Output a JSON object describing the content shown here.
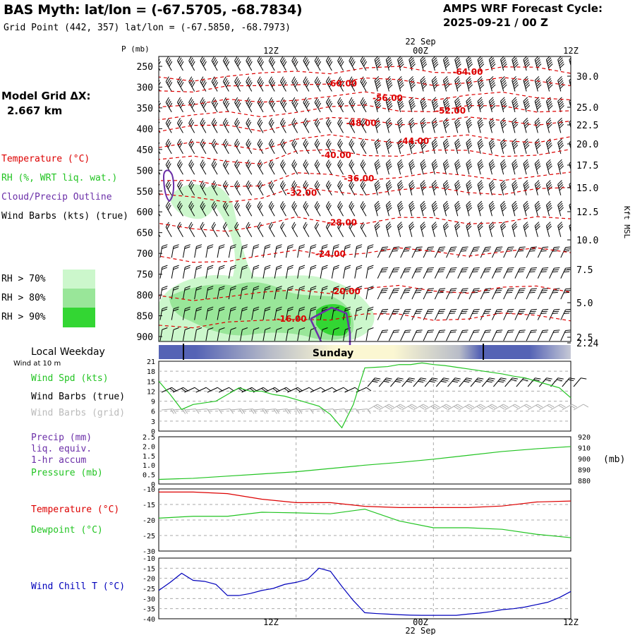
{
  "header": {
    "title": "BAS Myth:  lat/lon = (-67.5705, -68.7834)",
    "subtitle": "Grid Point (442, 357) lat/lon = (-67.5850, -68.7973)",
    "cycle_title": "AMPS WRF Forecast Cycle:",
    "cycle_date": "2025-09-21 / 00  Z",
    "grid_label": "Model Grid ΔX:",
    "grid_value": "2.667 km"
  },
  "legend": {
    "temperature": "Temperature (°C)",
    "rh": "RH (%, WRT liq. wat.)",
    "cloud": "Cloud/Precip Outline",
    "wind_barbs": "Wind Barbs (kts) (true)",
    "rh_levels": [
      {
        "label": "RH > 70%",
        "color": "#ccf7cc"
      },
      {
        "label": "RH > 80%",
        "color": "#99e699"
      },
      {
        "label": "RH > 90%",
        "color": "#33d633"
      }
    ]
  },
  "colors": {
    "temperature": "#dd0000",
    "rh": "#22c422",
    "cloud": "#6b2fa8",
    "wind_chill": "#0000bb",
    "barb": "#000000",
    "barb_grid": "#aaaaaa",
    "day_bar_night": "#5563b5",
    "day_bar_day": "#fbf7d2"
  },
  "time_axis": {
    "ticks": [
      "12Z",
      "00Z",
      "12Z"
    ],
    "date_label": "22 Sep"
  },
  "day_bar": {
    "title": "Local Weekday",
    "day": "Sunday"
  },
  "panels": {
    "wind": {
      "title": "Wind at 10 m",
      "label_speed": "Wind Spd (kts)",
      "label_true": "Wind Barbs (true)",
      "label_grid": "Wind Barbs (grid)"
    },
    "precip": {
      "label_precip": "Precip (mm)",
      "label_liq": "liq. equiv.",
      "label_accum": "1-hr accum",
      "label_pressure": "Pressure (mb)",
      "right_unit": "(mb)"
    },
    "temp": {
      "label_temperature": "Temperature (°C)",
      "label_dewpoint": "Dewpoint (°C)"
    },
    "chill": {
      "label": "Wind Chill T (°C)"
    }
  },
  "chart_data": [
    {
      "type": "heatmap",
      "name": "vertical cross-section",
      "ylabel_left": "P (mb)",
      "ylabel_right": "Kft MSL",
      "y_pressure_ticks": [
        250,
        300,
        350,
        400,
        450,
        500,
        550,
        600,
        650,
        700,
        750,
        800,
        850,
        900
      ],
      "y_height_ticks": [
        "30.0",
        "25.0",
        "22.5",
        "20.0",
        "17.5",
        "15.0",
        "12.5",
        "10.0",
        "7.5",
        "5.0",
        "2.5",
        "2.24"
      ],
      "x_ticks": [
        "12Z",
        "00Z",
        "12Z"
      ],
      "temperature_isotherm_labels": [
        {
          "label": "-64.00",
          "hour": 27,
          "p": 262
        },
        {
          "label": "-60.00",
          "hour": 16,
          "p": 290
        },
        {
          "label": "-56.00",
          "hour": 20,
          "p": 325
        },
        {
          "label": "-52.00",
          "hour": 25.5,
          "p": 355
        },
        {
          "label": "-48.00",
          "hour": 17.7,
          "p": 385
        },
        {
          "label": "-44.00",
          "hour": 22.3,
          "p": 428
        },
        {
          "label": "-40.00",
          "hour": 15.5,
          "p": 462
        },
        {
          "label": "-36.00",
          "hour": 17.5,
          "p": 518
        },
        {
          "label": "-32.00",
          "hour": 12.5,
          "p": 553
        },
        {
          "label": "-28.00",
          "hour": 16,
          "p": 624
        },
        {
          "label": "-24.00",
          "hour": 15,
          "p": 700
        },
        {
          "label": "-20.00",
          "hour": 16.3,
          "p": 790
        },
        {
          "label": "-16.00",
          "hour": 11.6,
          "p": 856
        }
      ]
    },
    {
      "type": "line",
      "name": "wind speed 10 m",
      "ylabel": "Wind Spd (kts)",
      "ylim": [
        0,
        21
      ],
      "yticks": [
        0,
        3,
        6,
        9,
        12,
        15,
        18,
        21
      ],
      "x": [
        0,
        1,
        2,
        3,
        4,
        5,
        6,
        7,
        8,
        9,
        10,
        11,
        12,
        13,
        14,
        15,
        16,
        17,
        18,
        19,
        20,
        21,
        22,
        23,
        24,
        25,
        26,
        27,
        28,
        29,
        30,
        31,
        32,
        33,
        34,
        35,
        36
      ],
      "series": [
        {
          "name": "Wind Spd (kts)",
          "values": [
            15,
            11,
            6.5,
            8,
            8.5,
            9,
            11,
            13,
            12,
            12,
            11,
            10.5,
            9.5,
            8.5,
            7.5,
            5,
            1,
            8,
            19,
            19.2,
            19.4,
            20,
            20,
            20.5,
            20,
            19.7,
            19.2,
            18.7,
            18.2,
            17.7,
            17.2,
            16.5,
            16,
            15,
            14,
            13,
            10
          ]
        }
      ]
    },
    {
      "type": "line",
      "name": "pressure",
      "ylabel_left": "Precip (mm)",
      "ylim_left": [
        0,
        2.5
      ],
      "yticks_left": [
        "0",
        "0.5",
        "1.0",
        "1.5",
        "2.0",
        "2.5"
      ],
      "ylabel_right": "(mb)",
      "ylim_right": [
        876.8,
        920
      ],
      "yticks_right": [
        880,
        890,
        900,
        910,
        920
      ],
      "x": [
        0,
        3,
        6,
        9,
        12,
        15,
        18,
        21,
        24,
        27,
        30,
        33,
        36
      ],
      "series": [
        {
          "name": "Pressure (mb)",
          "values": [
            881,
            882,
            884,
            886,
            888,
            891,
            894,
            896.5,
            899.5,
            903,
            906.5,
            909,
            911
          ]
        }
      ]
    },
    {
      "type": "line",
      "name": "temperature and dewpoint",
      "ylim": [
        -30,
        -10
      ],
      "yticks": [
        -10,
        -15,
        -20,
        -25,
        -30
      ],
      "x": [
        0,
        3,
        6,
        9,
        12,
        15,
        18,
        21,
        24,
        27,
        30,
        33,
        36
      ],
      "series": [
        {
          "name": "Temperature (°C)",
          "values": [
            -11,
            -11,
            -11.5,
            -13.3,
            -14.4,
            -14.4,
            -15.6,
            -16,
            -16,
            -16,
            -15.5,
            -14.2,
            -13.9
          ]
        },
        {
          "name": "Dewpoint (°C)",
          "values": [
            -19.4,
            -18.8,
            -18.8,
            -17.5,
            -17.7,
            -18,
            -16.5,
            -20.3,
            -22.5,
            -22.5,
            -23,
            -24.6,
            -25.7
          ]
        }
      ]
    },
    {
      "type": "line",
      "name": "wind chill",
      "ylim": [
        -40,
        -10
      ],
      "yticks": [
        -10,
        -15,
        -20,
        -25,
        -30,
        -35,
        -40
      ],
      "x": [
        0,
        1,
        2,
        3,
        4,
        5,
        6,
        7,
        8,
        9,
        10,
        11,
        12,
        13,
        14,
        15,
        16,
        17,
        18,
        19,
        20,
        21,
        22,
        23,
        24,
        25,
        26,
        27,
        28,
        29,
        30,
        31,
        32,
        33,
        34,
        35,
        36
      ],
      "series": [
        {
          "name": "Wind Chill T (°C)",
          "values": [
            -26,
            -22,
            -17.5,
            -21,
            -21.5,
            -23,
            -28.5,
            -28.5,
            -27.5,
            -26,
            -25,
            -23,
            -22,
            -20.5,
            -15,
            -16.5,
            -24,
            -31,
            -37,
            -37.4,
            -37.7,
            -38,
            -38.2,
            -38.3,
            -38.3,
            -38.3,
            -38.3,
            -37.7,
            -37.2,
            -36.5,
            -35.5,
            -35,
            -34.2,
            -33,
            -31.8,
            -29.5,
            -26.5
          ]
        }
      ]
    }
  ]
}
